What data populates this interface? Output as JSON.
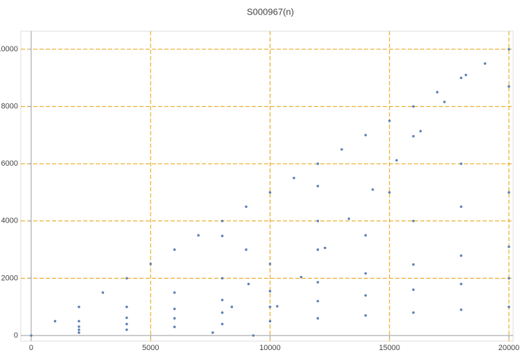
{
  "chart_data": {
    "type": "scatter",
    "title": "S000967(n)",
    "x": [
      0,
      1000,
      2000,
      3000,
      4000,
      5000,
      6000,
      7000,
      8000,
      9000,
      10000,
      11000,
      12000,
      13000,
      14000,
      15000,
      16000,
      17000,
      18000,
      19000,
      20000,
      2000,
      4000,
      6000,
      8000,
      10000,
      12000,
      14000,
      16000,
      18000,
      20000,
      2000,
      4000,
      6000,
      8000,
      10000,
      12000,
      14000,
      16000,
      18000,
      20000,
      2000,
      4000,
      6000,
      8000,
      10000,
      12000,
      14000,
      16000,
      18000,
      20000,
      2000,
      4000,
      6000,
      8000,
      10000,
      12000,
      14000,
      16000,
      18000,
      20000,
      9300,
      10300,
      11300,
      12300,
      13300,
      14300,
      15300,
      16300,
      17300,
      18200,
      8000,
      12000,
      16000,
      20000,
      9000,
      12000,
      15000,
      18000,
      7600,
      8400,
      9100
    ],
    "values": [
      0,
      500,
      1000,
      1500,
      2000,
      2500,
      3000,
      3500,
      4000,
      4500,
      5000,
      5500,
      6000,
      6500,
      7000,
      7500,
      8000,
      8500,
      9000,
      9500,
      10000,
      500,
      1000,
      1500,
      2000,
      2500,
      3000,
      3500,
      4000,
      4500,
      5000,
      310,
      620,
      930,
      1240,
      1550,
      1860,
      2170,
      2480,
      2790,
      3100,
      200,
      400,
      600,
      800,
      1000,
      1200,
      1400,
      1600,
      1800,
      2000,
      100,
      200,
      300,
      400,
      500,
      600,
      700,
      800,
      900,
      1000,
      0,
      1020,
      2040,
      3060,
      4080,
      5100,
      6120,
      7140,
      8160,
      9100,
      3480,
      5220,
      6960,
      8700,
      3000,
      4000,
      5000,
      6000,
      100,
      1000,
      1800
    ],
    "color": "#5e81b5",
    "xlim": [
      -435,
      20174
    ],
    "ylim": [
      -194,
      10630
    ],
    "xticks": [
      0,
      5000,
      10000,
      15000,
      20000
    ],
    "yticks": [
      0,
      2000,
      4000,
      6000,
      8000,
      10000
    ],
    "grid": true,
    "grid_color": "#e69f00"
  }
}
